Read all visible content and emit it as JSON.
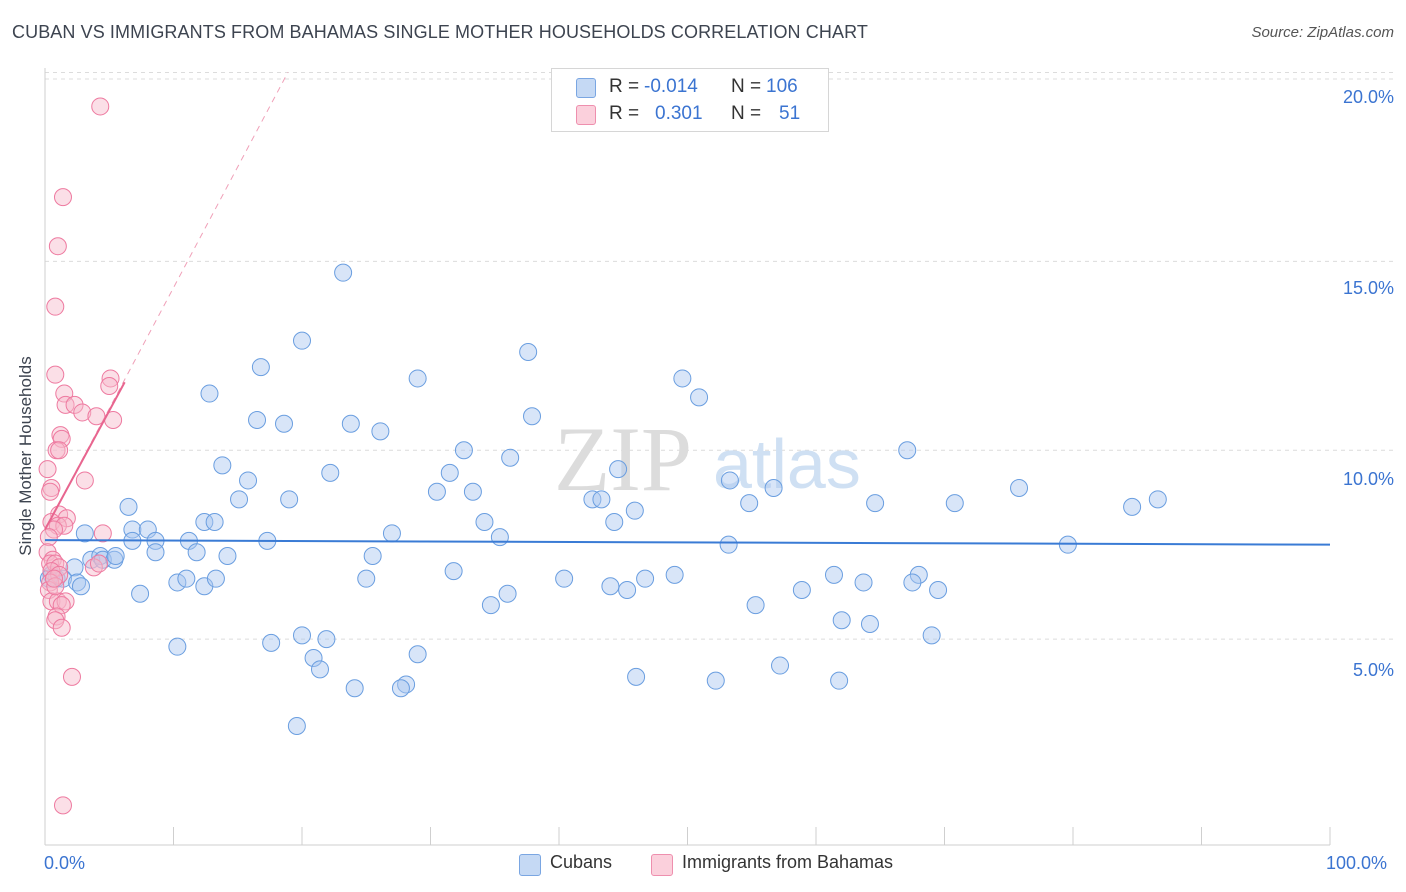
{
  "title": "CUBAN VS IMMIGRANTS FROM BAHAMAS SINGLE MOTHER HOUSEHOLDS CORRELATION CHART",
  "source": "Source: ZipAtlas.com",
  "watermark": {
    "zip": "ZIP",
    "atlas": "atlas"
  },
  "legend_top": {
    "rows": [
      {
        "r_label": "R =",
        "r_value": "-0.014",
        "n_label": "N =",
        "n_value": "106",
        "color": "#a9c6ef"
      },
      {
        "r_label": "R =",
        "r_value": "0.301",
        "n_label": "N =",
        "n_value": "51",
        "color": "#f6b7c9"
      }
    ]
  },
  "legend_bottom": [
    {
      "label": "Cubans",
      "color": "#a9c6ef"
    },
    {
      "label": "Immigrants from Bahamas",
      "color": "#f6b7c9"
    }
  ],
  "chart_data": {
    "type": "scatter",
    "title": "CUBAN VS IMMIGRANTS FROM BAHAMAS SINGLE MOTHER HOUSEHOLDS CORRELATION CHART",
    "xlabel": "",
    "ylabel": "Single Mother Households",
    "xlim": [
      0,
      100
    ],
    "ylim": [
      0,
      20.5
    ],
    "x_tick_labels": [
      "0.0%",
      "100.0%"
    ],
    "y_tick_labels": [
      "5.0%",
      "10.0%",
      "15.0%",
      "20.0%"
    ],
    "y_ticks": [
      5,
      10,
      15,
      20
    ],
    "grid": "horizontal dashed",
    "series": [
      {
        "name": "Cubans",
        "color": "#6a9ee0",
        "fill": "#a9c6ef",
        "trend": {
          "x": [
            0,
            100
          ],
          "y": [
            7.62,
            7.5
          ]
        },
        "points": [
          [
            23.2,
            14.7
          ],
          [
            20.0,
            12.9
          ],
          [
            37.6,
            12.6
          ],
          [
            16.8,
            12.2
          ],
          [
            29.0,
            11.9
          ],
          [
            49.6,
            11.9
          ],
          [
            12.8,
            11.5
          ],
          [
            50.9,
            11.4
          ],
          [
            16.5,
            10.8
          ],
          [
            18.6,
            10.7
          ],
          [
            23.8,
            10.7
          ],
          [
            26.1,
            10.5
          ],
          [
            37.9,
            10.9
          ],
          [
            32.6,
            10.0
          ],
          [
            36.2,
            9.8
          ],
          [
            67.1,
            10.0
          ],
          [
            13.8,
            9.6
          ],
          [
            22.2,
            9.4
          ],
          [
            31.5,
            9.4
          ],
          [
            44.6,
            9.5
          ],
          [
            15.8,
            9.2
          ],
          [
            53.3,
            9.2
          ],
          [
            56.7,
            9.0
          ],
          [
            75.8,
            9.0
          ],
          [
            15.1,
            8.7
          ],
          [
            19.0,
            8.7
          ],
          [
            30.5,
            8.9
          ],
          [
            33.3,
            8.9
          ],
          [
            42.6,
            8.7
          ],
          [
            43.3,
            8.7
          ],
          [
            54.8,
            8.6
          ],
          [
            64.6,
            8.6
          ],
          [
            70.8,
            8.6
          ],
          [
            84.6,
            8.5
          ],
          [
            86.6,
            8.7
          ],
          [
            6.5,
            8.5
          ],
          [
            12.4,
            8.1
          ],
          [
            13.2,
            8.1
          ],
          [
            34.2,
            8.1
          ],
          [
            44.3,
            8.1
          ],
          [
            45.9,
            8.4
          ],
          [
            6.8,
            7.9
          ],
          [
            8.0,
            7.9
          ],
          [
            27.0,
            7.8
          ],
          [
            3.1,
            7.8
          ],
          [
            6.8,
            7.6
          ],
          [
            8.6,
            7.6
          ],
          [
            11.2,
            7.6
          ],
          [
            17.3,
            7.6
          ],
          [
            35.4,
            7.7
          ],
          [
            53.2,
            7.5
          ],
          [
            79.6,
            7.5
          ],
          [
            8.6,
            7.3
          ],
          [
            11.8,
            7.3
          ],
          [
            14.2,
            7.2
          ],
          [
            25.5,
            7.2
          ],
          [
            3.6,
            7.1
          ],
          [
            4.3,
            7.2
          ],
          [
            4.5,
            7.1
          ],
          [
            5.4,
            7.1
          ],
          [
            5.5,
            7.2
          ],
          [
            2.3,
            6.9
          ],
          [
            12.4,
            6.4
          ],
          [
            13.3,
            6.6
          ],
          [
            31.8,
            6.8
          ],
          [
            40.4,
            6.6
          ],
          [
            46.7,
            6.6
          ],
          [
            49.0,
            6.7
          ],
          [
            61.4,
            6.7
          ],
          [
            68.0,
            6.7
          ],
          [
            10.3,
            6.5
          ],
          [
            11.0,
            6.6
          ],
          [
            25.0,
            6.6
          ],
          [
            44.0,
            6.4
          ],
          [
            45.3,
            6.3
          ],
          [
            58.9,
            6.3
          ],
          [
            63.7,
            6.5
          ],
          [
            67.5,
            6.5
          ],
          [
            69.5,
            6.3
          ],
          [
            0.5,
            6.7
          ],
          [
            0.9,
            6.6
          ],
          [
            1.4,
            6.6
          ],
          [
            2.5,
            6.5
          ],
          [
            2.8,
            6.4
          ],
          [
            0.3,
            6.6
          ],
          [
            7.4,
            6.2
          ],
          [
            36.0,
            6.2
          ],
          [
            34.7,
            5.9
          ],
          [
            55.3,
            5.9
          ],
          [
            62.0,
            5.5
          ],
          [
            64.2,
            5.4
          ],
          [
            69.0,
            5.1
          ],
          [
            20.0,
            5.1
          ],
          [
            21.9,
            5.0
          ],
          [
            10.3,
            4.8
          ],
          [
            17.6,
            4.9
          ],
          [
            29.0,
            4.6
          ],
          [
            20.9,
            4.5
          ],
          [
            21.4,
            4.2
          ],
          [
            57.2,
            4.3
          ],
          [
            46.0,
            4.0
          ],
          [
            52.2,
            3.9
          ],
          [
            61.8,
            3.9
          ],
          [
            24.1,
            3.7
          ],
          [
            28.1,
            3.8
          ],
          [
            27.7,
            3.7
          ],
          [
            19.6,
            2.7
          ]
        ]
      },
      {
        "name": "Immigrants from Bahamas",
        "color": "#ee7aa0",
        "fill": "#f6b7c9",
        "trend": {
          "x": [
            0,
            6.2
          ],
          "y": [
            7.9,
            11.8
          ],
          "extrapolated_x": [
            0,
            18.9
          ],
          "extrapolated_y": [
            7.9,
            20.0
          ]
        },
        "points": [
          [
            4.3,
            19.1
          ],
          [
            1.4,
            16.7
          ],
          [
            1.0,
            15.4
          ],
          [
            0.8,
            13.8
          ],
          [
            0.8,
            12.0
          ],
          [
            5.1,
            11.9
          ],
          [
            5.0,
            11.7
          ],
          [
            1.5,
            11.5
          ],
          [
            1.6,
            11.2
          ],
          [
            2.3,
            11.2
          ],
          [
            2.9,
            11.0
          ],
          [
            4.0,
            10.9
          ],
          [
            5.3,
            10.8
          ],
          [
            1.2,
            10.4
          ],
          [
            1.3,
            10.3
          ],
          [
            0.9,
            10.0
          ],
          [
            1.1,
            10.0
          ],
          [
            3.1,
            9.2
          ],
          [
            0.2,
            9.5
          ],
          [
            0.5,
            9.0
          ],
          [
            0.4,
            8.9
          ],
          [
            1.1,
            8.3
          ],
          [
            1.7,
            8.2
          ],
          [
            0.5,
            8.1
          ],
          [
            1.0,
            8.0
          ],
          [
            1.5,
            8.0
          ],
          [
            0.7,
            7.9
          ],
          [
            4.5,
            7.8
          ],
          [
            0.3,
            7.7
          ],
          [
            0.2,
            7.3
          ],
          [
            0.6,
            7.1
          ],
          [
            0.4,
            7.0
          ],
          [
            0.8,
            7.0
          ],
          [
            1.1,
            6.9
          ],
          [
            0.5,
            6.8
          ],
          [
            3.8,
            6.9
          ],
          [
            4.2,
            7.0
          ],
          [
            1.1,
            6.7
          ],
          [
            0.4,
            6.5
          ],
          [
            0.3,
            6.3
          ],
          [
            0.5,
            6.0
          ],
          [
            1.0,
            6.0
          ],
          [
            1.6,
            6.0
          ],
          [
            1.3,
            5.9
          ],
          [
            0.9,
            5.6
          ],
          [
            0.8,
            5.5
          ],
          [
            1.3,
            5.3
          ],
          [
            2.1,
            4.0
          ],
          [
            0.8,
            6.4
          ],
          [
            0.7,
            6.6
          ],
          [
            1.4,
            0.6
          ]
        ]
      }
    ]
  }
}
